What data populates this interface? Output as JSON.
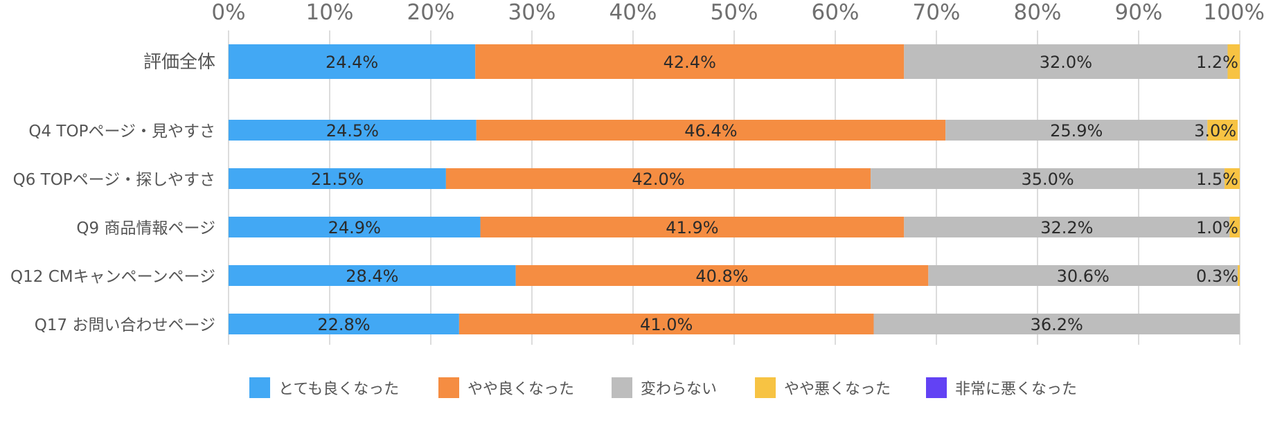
{
  "chart_data": {
    "type": "bar",
    "orientation": "horizontal",
    "stacked": "percent",
    "categories": [
      "評価全体",
      "Q4 TOPページ・見やすさ",
      "Q6 TOPページ・探しやすさ",
      "Q9 商品情報ページ",
      "Q12 CMキャンペーンページ",
      "Q17 お問い合わせページ"
    ],
    "series": [
      {
        "name": "とても良くなった",
        "color": "#42A8F4",
        "values": [
          24.4,
          24.5,
          21.5,
          24.9,
          28.4,
          22.8
        ]
      },
      {
        "name": "やや良くなった",
        "color": "#F58D42",
        "values": [
          42.4,
          46.4,
          42.0,
          41.9,
          40.8,
          41.0
        ]
      },
      {
        "name": "変わらない",
        "color": "#BDBDBD",
        "values": [
          32.0,
          25.9,
          35.0,
          32.2,
          30.6,
          36.2
        ]
      },
      {
        "name": "やや悪くなった",
        "color": "#F7C343",
        "values": [
          1.2,
          3.0,
          1.5,
          1.0,
          0.3,
          0.0
        ]
      },
      {
        "name": "非常に悪くなった",
        "color": "#6242F4",
        "values": [
          0,
          0,
          0,
          0,
          0,
          0
        ]
      }
    ],
    "data_labels": [
      [
        "24.4%",
        "42.4%",
        "32.0%",
        "1.2%",
        ""
      ],
      [
        "24.5%",
        "46.4%",
        "25.9%",
        "3.0%",
        ""
      ],
      [
        "21.5%",
        "42.0%",
        "35.0%",
        "1.5%",
        ""
      ],
      [
        "24.9%",
        "41.9%",
        "32.2%",
        "1.0%",
        ""
      ],
      [
        "28.4%",
        "40.8%",
        "30.6%",
        "0.3%",
        ""
      ],
      [
        "22.8%",
        "41.0%",
        "36.2%",
        "",
        ""
      ]
    ],
    "x_ticks": [
      "0%",
      "10%",
      "20%",
      "30%",
      "40%",
      "50%",
      "60%",
      "70%",
      "80%",
      "90%",
      "100%"
    ],
    "xlim": [
      0,
      100
    ],
    "grid": true,
    "legend_position": "bottom",
    "title": "",
    "xlabel": "",
    "ylabel": ""
  }
}
